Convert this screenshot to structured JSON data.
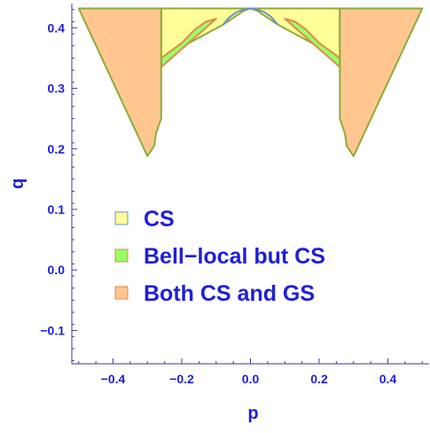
{
  "chart_data": {
    "type": "area",
    "xlabel": "p",
    "ylabel": "q",
    "xlim": [
      -0.52,
      0.52
    ],
    "ylim": [
      -0.155,
      0.44
    ],
    "grid": false,
    "legend_placement": "center-left",
    "colors": {
      "axis": "#3a3aa0",
      "tick_text": "#1f1fd6",
      "label_text": "#1f1fd6",
      "cs_fill": "#ffff99",
      "bell_fill": "#99ff66",
      "both_fill": "#ffc78f",
      "boundary": "#8cab3c",
      "top_arc": "#6a8fd0",
      "inner_edge": "#e08a4a"
    },
    "xticks": [
      {
        "value": -0.4,
        "label": "−0.4"
      },
      {
        "value": -0.2,
        "label": "−0.2"
      },
      {
        "value": 0.0,
        "label": "0.0"
      },
      {
        "value": 0.2,
        "label": "0.2"
      },
      {
        "value": 0.4,
        "label": "0.4"
      }
    ],
    "yticks": [
      {
        "value": 0.4,
        "label": "0.4"
      },
      {
        "value": 0.3,
        "label": "0.3"
      },
      {
        "value": 0.2,
        "label": "0.2"
      },
      {
        "value": 0.1,
        "label": "0.1"
      },
      {
        "value": 0.0,
        "label": "0.0"
      },
      {
        "value": -0.1,
        "label": "−0.1"
      }
    ],
    "legend": [
      {
        "key": "cs",
        "label": "CS"
      },
      {
        "key": "bell",
        "label": "Bell−local but CS"
      },
      {
        "key": "both",
        "label": "Both CS and GS"
      }
    ],
    "regions": [
      {
        "key": "cs",
        "x": [
          -0.26,
          -0.26,
          -0.08,
          -0.02,
          0.0,
          0.02,
          0.08,
          0.26,
          0.26,
          0.1,
          0.05,
          0.0,
          -0.05,
          -0.1
        ],
        "y": [
          0.432,
          0.35,
          0.405,
          0.428,
          0.432,
          0.428,
          0.405,
          0.35,
          0.432,
          0.432,
          0.432,
          0.432,
          0.432,
          0.432
        ]
      },
      {
        "key": "bell",
        "x": [
          -0.26,
          -0.26,
          -0.2,
          -0.16,
          -0.13,
          -0.1,
          -0.18,
          -0.26
        ],
        "y": [
          0.335,
          0.35,
          0.375,
          0.398,
          0.41,
          0.415,
          0.375,
          0.335
        ]
      },
      {
        "key": "bell",
        "x": [
          0.26,
          0.26,
          0.2,
          0.16,
          0.13,
          0.1,
          0.18,
          0.26
        ],
        "y": [
          0.335,
          0.35,
          0.375,
          0.398,
          0.41,
          0.415,
          0.375,
          0.335
        ]
      },
      {
        "key": "cs_arc",
        "x": [
          -0.08,
          -0.06,
          -0.04,
          -0.02,
          0.0,
          0.02,
          0.04,
          0.06,
          0.08
        ],
        "y": [
          0.405,
          0.418,
          0.426,
          0.43,
          0.432,
          0.43,
          0.426,
          0.418,
          0.405
        ]
      },
      {
        "key": "both",
        "x": [
          -0.5,
          -0.26,
          -0.26,
          -0.275,
          -0.28,
          -0.3,
          -0.5
        ],
        "y": [
          0.432,
          0.432,
          0.25,
          0.225,
          0.205,
          0.188,
          0.432
        ]
      },
      {
        "key": "both",
        "x": [
          0.5,
          0.26,
          0.26,
          0.275,
          0.28,
          0.3,
          0.5
        ],
        "y": [
          0.432,
          0.432,
          0.25,
          0.225,
          0.205,
          0.188,
          0.432
        ]
      }
    ]
  }
}
